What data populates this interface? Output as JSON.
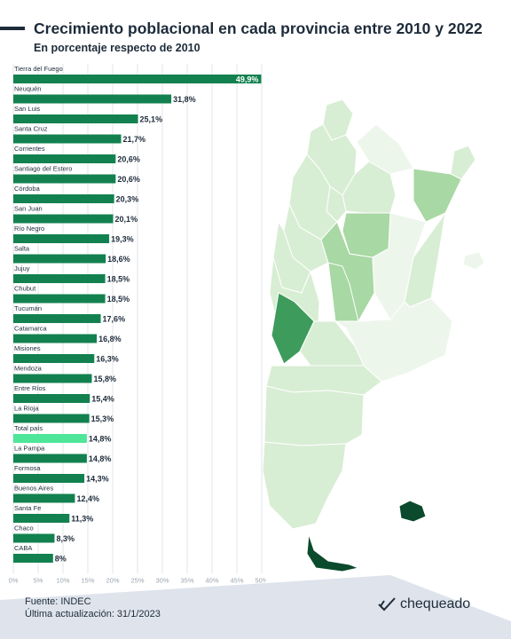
{
  "header": {
    "title": "Crecimiento poblacional en cada provincia entre 2010 y 2022",
    "subtitle": "En porcentaje respecto de 2010"
  },
  "footer": {
    "source": "Fuente: INDEC",
    "updated": "Última actualización: 31/1/2023",
    "brand": "chequeado"
  },
  "colors": {
    "bar": "#13814f",
    "highlight_bar": "#4fe69a",
    "map_highlight": "#3d9b5c",
    "map_mid": "#a8d8a3",
    "map_light": "#d8eed4",
    "map_dark": "#0b4a2c",
    "text": "#1d2b3a"
  },
  "chart_data": {
    "type": "bar",
    "orientation": "horizontal",
    "categories": [
      "Tierra del Fuego",
      "Neuquén",
      "San Luis",
      "Santa Cruz",
      "Corrientes",
      "Santiago del Estero",
      "Córdoba",
      "San Juan",
      "Río Negro",
      "Salta",
      "Jujuy",
      "Chubut",
      "Tucumán",
      "Catamarca",
      "Misiones",
      "Mendoza",
      "Entre Ríos",
      "La Rioja",
      "Total país",
      "La Pampa",
      "Formosa",
      "Buenos Aires",
      "Santa Fe",
      "Chaco",
      "CABA"
    ],
    "values": [
      49.9,
      31.8,
      25.1,
      21.7,
      20.6,
      20.6,
      20.3,
      20.1,
      19.3,
      18.6,
      18.5,
      18.5,
      17.6,
      16.8,
      16.3,
      15.8,
      15.4,
      15.3,
      14.8,
      14.8,
      14.3,
      12.4,
      11.3,
      8.3,
      8.0
    ],
    "value_labels": [
      "49,9%",
      "31,8%",
      "25,1%",
      "21,7%",
      "20,6%",
      "20,6%",
      "20,3%",
      "20,1%",
      "19,3%",
      "18,6%",
      "18,5%",
      "18,5%",
      "17,6%",
      "16,8%",
      "16,3%",
      "15,8%",
      "15,4%",
      "15,3%",
      "14,8%",
      "14,8%",
      "14,3%",
      "12,4%",
      "11,3%",
      "8,3%",
      "8%"
    ],
    "highlight": "Total país",
    "xlim": [
      0,
      50
    ],
    "ticks": [
      0,
      5,
      10,
      15,
      20,
      25,
      30,
      35,
      40,
      45,
      50
    ],
    "tick_labels": [
      "0%",
      "5%",
      "10%",
      "15%",
      "20%",
      "25%",
      "30%",
      "35%",
      "40%",
      "45%",
      "50%"
    ],
    "grid": true
  }
}
